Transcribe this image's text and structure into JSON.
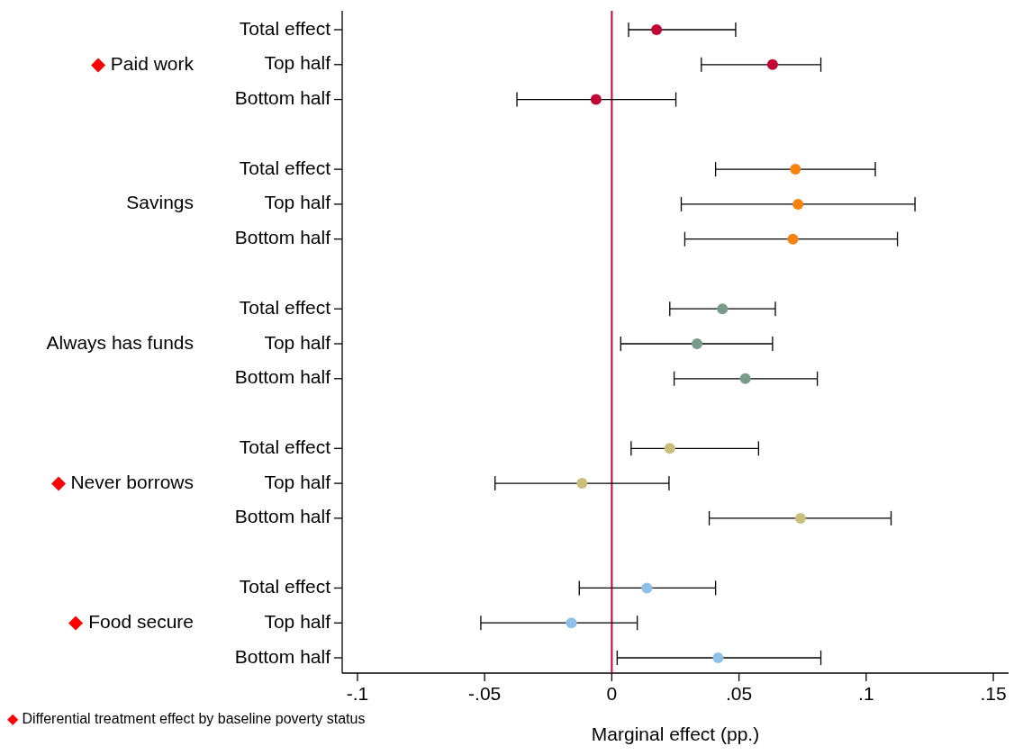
{
  "chart_data": {
    "type": "scatter",
    "orientation": "horizontal",
    "categories": [
      "Total effect",
      "Top half",
      "Bottom half",
      null,
      "Total effect",
      "Top half",
      "Bottom half",
      null,
      "Total effect",
      "Top half",
      "Bottom half",
      null,
      "Total effect",
      "Top half",
      "Bottom half",
      null,
      "Total effect",
      "Top half",
      "Bottom half"
    ],
    "series": [
      {
        "color": "#c10534",
        "values": [
          0.0176,
          0.0632,
          -0.0062,
          null,
          null,
          null,
          null,
          null,
          null,
          null,
          null,
          null,
          null,
          null,
          null,
          null,
          null,
          null,
          null
        ],
        "errors": [
          [
            0.0066,
            0.0487
          ],
          [
            0.0352,
            0.0822
          ],
          [
            -0.0373,
            0.0252
          ],
          null,
          null,
          null,
          null,
          null,
          null,
          null,
          null,
          null,
          null,
          null,
          null,
          null,
          null,
          null,
          null
        ]
      },
      {
        "color": "#f4830f",
        "values": [
          null,
          null,
          null,
          null,
          0.0722,
          0.0732,
          0.0712,
          null,
          null,
          null,
          null,
          null,
          null,
          null,
          null,
          null,
          null,
          null,
          null
        ],
        "errors": [
          null,
          null,
          null,
          null,
          [
            0.0408,
            0.1036
          ],
          [
            0.0273,
            0.1192
          ],
          [
            0.0287,
            0.1123
          ],
          null,
          null,
          null,
          null,
          null,
          null,
          null,
          null,
          null,
          null,
          null,
          null
        ]
      },
      {
        "color": "#7a9a8a",
        "values": [
          null,
          null,
          null,
          null,
          null,
          null,
          null,
          null,
          0.0435,
          0.0335,
          0.0525,
          null,
          null,
          null,
          null,
          null,
          null,
          null,
          null
        ],
        "errors": [
          null,
          null,
          null,
          null,
          null,
          null,
          null,
          null,
          [
            0.0228,
            0.0643
          ],
          [
            0.0035,
            0.0632
          ],
          [
            0.0245,
            0.0808
          ],
          null,
          null,
          null,
          null,
          null,
          null,
          null,
          null
        ]
      },
      {
        "color": "#c9be7a",
        "values": [
          null,
          null,
          null,
          null,
          null,
          null,
          null,
          null,
          null,
          null,
          null,
          null,
          0.0228,
          -0.0117,
          0.0742,
          null,
          null,
          null,
          null
        ],
        "errors": [
          null,
          null,
          null,
          null,
          null,
          null,
          null,
          null,
          null,
          null,
          null,
          null,
          [
            0.0076,
            0.0577
          ],
          [
            -0.0459,
            0.0225
          ],
          [
            0.0383,
            0.1098
          ],
          null,
          null,
          null,
          null
        ]
      },
      {
        "color": "#8fc1e8",
        "values": [
          null,
          null,
          null,
          null,
          null,
          null,
          null,
          null,
          null,
          null,
          null,
          null,
          null,
          null,
          null,
          null,
          0.0138,
          -0.0159,
          0.0418
        ],
        "errors": [
          null,
          null,
          null,
          null,
          null,
          null,
          null,
          null,
          null,
          null,
          null,
          null,
          null,
          null,
          null,
          null,
          [
            -0.0128,
            0.0408
          ],
          [
            -0.0515,
            0.01
          ],
          [
            0.0021,
            0.0822
          ]
        ]
      }
    ],
    "xlim": [
      -0.106,
      0.156
    ],
    "xticks": [
      {
        "value": -0.1,
        "label": "-.1"
      },
      {
        "value": -0.05,
        "label": "-.05"
      },
      0,
      {
        "value": 0.05,
        "label": ".05"
      },
      {
        "value": 0.1,
        "label": ".1"
      },
      {
        "value": 0.15,
        "label": ".15"
      }
    ],
    "xlabel": "Marginal effect (pp.)",
    "ref_lines": [
      {
        "axis": "x",
        "value": 0,
        "color": "#c10534"
      }
    ],
    "marker": "circle",
    "grid": false,
    "annotations": [
      "◆ Paid work",
      "Savings",
      "Always has funds",
      "◆ Never borrows",
      "◆ Food secure",
      "◆ Differential treatment effect by baseline poverty status"
    ]
  }
}
